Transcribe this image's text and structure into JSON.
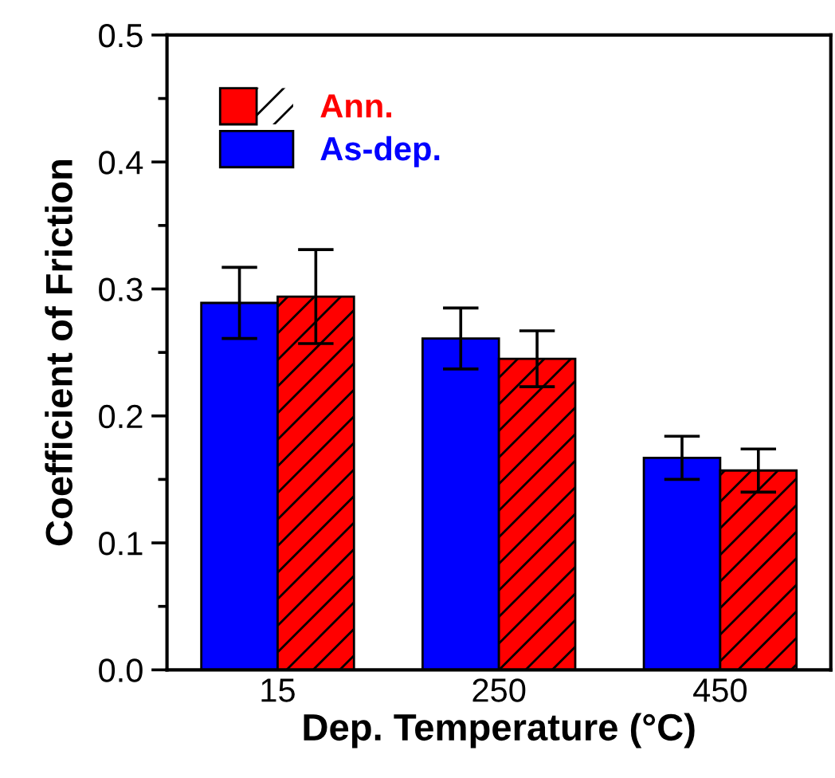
{
  "chart_data": {
    "type": "bar",
    "xlabel": "Dep. Temperature (°C)",
    "ylabel": "Coefficient of Friction",
    "categories": [
      "15",
      "250",
      "450"
    ],
    "series": [
      {
        "name": "As-dep.",
        "color": "#0000ff",
        "values": [
          0.289,
          0.261,
          0.167
        ],
        "errors": [
          0.028,
          0.024,
          0.017
        ]
      },
      {
        "name": "Ann.",
        "color": "#ff0000",
        "values": [
          0.294,
          0.245,
          0.157
        ],
        "errors": [
          0.037,
          0.022,
          0.017
        ]
      }
    ],
    "ylim": [
      0.0,
      0.5
    ],
    "yticks": [
      {
        "value": 0.0,
        "label": "0.0"
      },
      {
        "value": 0.1,
        "label": "0.1"
      },
      {
        "value": 0.2,
        "label": "0.2"
      },
      {
        "value": 0.3,
        "label": "0.3"
      },
      {
        "value": 0.4,
        "label": "0.4"
      },
      {
        "value": 0.5,
        "label": "0.5"
      }
    ],
    "grid": false,
    "legend": "top left"
  }
}
